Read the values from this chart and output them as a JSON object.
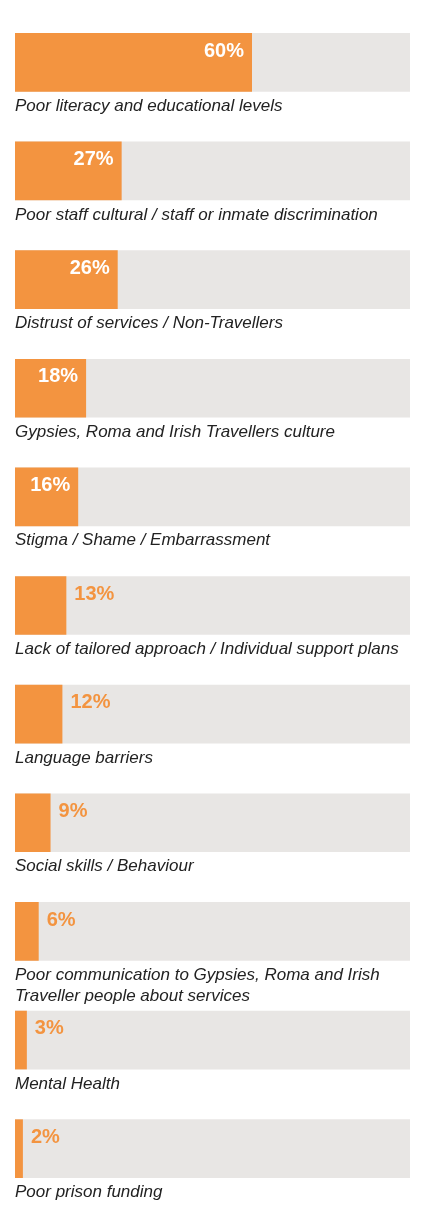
{
  "chart_data": {
    "type": "bar",
    "orientation": "horizontal",
    "categories": [
      "Poor literacy and educational levels",
      "Poor staff cultural / staff or inmate discrimination",
      "Distrust of services / Non-Travellers",
      "Gypsies, Roma and Irish Travellers culture",
      "Stigma / Shame / Embarrassment",
      "Lack of tailored approach / Individual support plans",
      "Language barriers",
      "Social skills / Behaviour",
      "Poor communication to Gypsies, Roma and Irish Traveller people about services",
      "Mental Health",
      "Poor prison funding"
    ],
    "values": [
      60,
      27,
      26,
      18,
      16,
      13,
      12,
      9,
      6,
      3,
      2
    ],
    "value_labels": [
      "60%",
      "27%",
      "26%",
      "18%",
      "16%",
      "13%",
      "12%",
      "9%",
      "6%",
      "3%",
      "2%"
    ],
    "color": "#f39440",
    "xlim": [
      0,
      100
    ]
  }
}
